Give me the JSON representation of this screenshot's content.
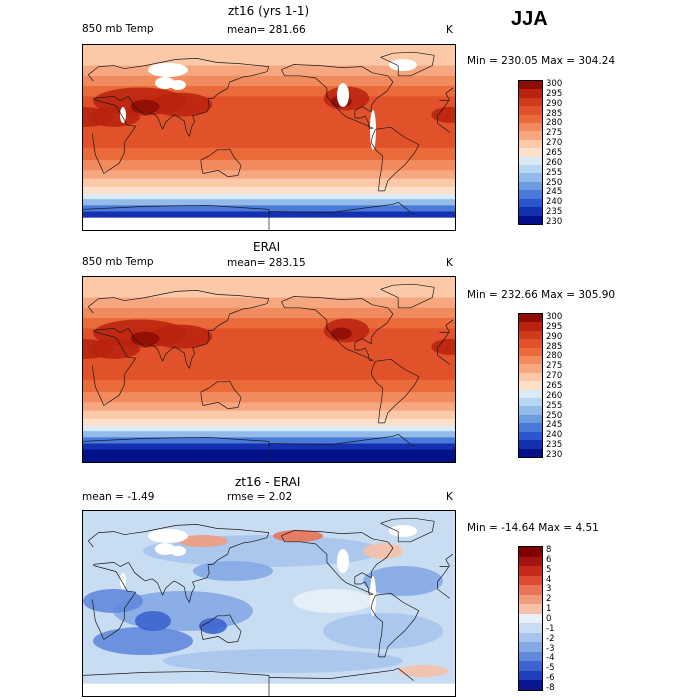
{
  "season": "JJA",
  "palettes": {
    "abs": [
      "#fde0ca",
      "#fbc8a8",
      "#f7a77f",
      "#f18a5d",
      "#ea6a3a",
      "#e2522a",
      "#cf3a1a",
      "#b8220e",
      "#8f0c05"
    ],
    "absCool": [
      "#d9ecf6",
      "#b6d6f1",
      "#92bbe9",
      "#6d9be0",
      "#4a7ad9",
      "#2a56d0",
      "#1230b0",
      "#02118a"
    ],
    "diff": [
      "#f6c0a6",
      "#f19b7d",
      "#e97357",
      "#dd4b34",
      "#c72a1d",
      "#a3130f",
      "#800000"
    ],
    "diffCool": [
      "#e8f1f8",
      "#c9ddf2",
      "#a8c4ec",
      "#85a9e4",
      "#6288db",
      "#3d64d0",
      "#1f3fbb",
      "#08178f"
    ],
    "land": "#000000",
    "missing": "#ffffff"
  },
  "panels": [
    {
      "title": "zt16 (yrs 1-1)",
      "left": "850 mb Temp",
      "mid": "mean= 281.66",
      "unit": "K",
      "stats": "Min = 230.05 Max = 304.24",
      "mode": "abs",
      "missing": true
    },
    {
      "title": "ERAI",
      "left": "850 mb Temp",
      "mid": "mean= 283.15",
      "unit": "K",
      "stats": "Min = 232.66 Max = 305.90",
      "mode": "abs",
      "missing": false
    },
    {
      "title": "zt16 - ERAI",
      "left": "mean =   -1.49",
      "mid": "rmse =   2.02",
      "unit": "K",
      "stats": "Min = -14.64 Max =    4.51",
      "mode": "diff",
      "missing": true
    }
  ],
  "chart_data": [
    {
      "type": "heatmap",
      "title": "zt16 (yrs 1-1)",
      "variable": "850 mb Temp",
      "units": "K",
      "mean": 281.66,
      "min": 230.05,
      "max": 304.24,
      "colorbar_levels": [
        300,
        295,
        290,
        285,
        280,
        275,
        270,
        265,
        260,
        255,
        250,
        245,
        240,
        235,
        230
      ]
    },
    {
      "type": "heatmap",
      "title": "ERAI",
      "variable": "850 mb Temp",
      "units": "K",
      "mean": 283.15,
      "min": 232.66,
      "max": 305.9,
      "colorbar_levels": [
        300,
        295,
        290,
        285,
        280,
        275,
        270,
        265,
        260,
        255,
        250,
        245,
        240,
        235,
        230
      ]
    },
    {
      "type": "heatmap",
      "title": "zt16 - ERAI",
      "units": "K",
      "mean": -1.49,
      "rmse": 2.02,
      "min": -14.64,
      "max": 4.51,
      "colorbar_levels": [
        8,
        6,
        5,
        4,
        3,
        2,
        1,
        0,
        -1,
        -2,
        -3,
        -4,
        -5,
        -6,
        -8
      ]
    }
  ]
}
